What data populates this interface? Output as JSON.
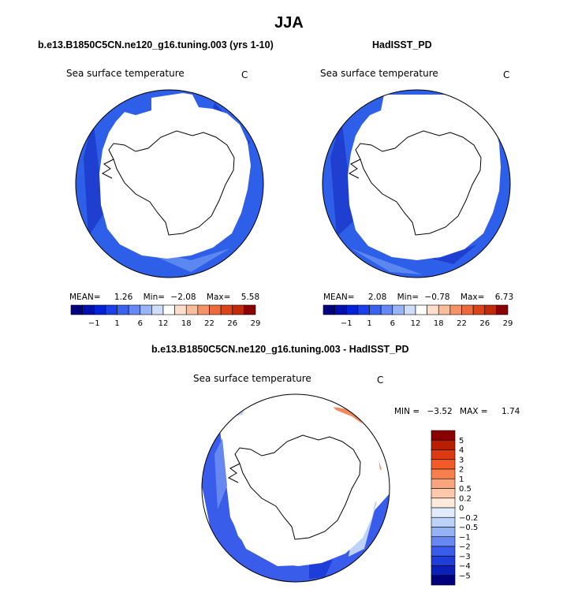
{
  "season": "JJA",
  "colors": {
    "land": "#ffffff",
    "outline": "#000000",
    "cold_band": "#2e5fe8",
    "cold_band_dark": "#1f3fd0",
    "warm_patch": "#f08a5c"
  },
  "chart_data": [
    {
      "type": "heatmap",
      "name": "model",
      "title": "b.e13.B1850C5CN.ne120_g16.tuning.003 (yrs 1-10)",
      "variable": "Sea surface temperature",
      "units": "C",
      "projection": "south-polar-stereographic",
      "stats": {
        "mean_label": "MEAN=",
        "mean": "1.26",
        "min_label": "Min=",
        "min": "−2.08",
        "max_label": "Max=",
        "max": "5.58"
      },
      "colorbar": {
        "orientation": "horizontal",
        "levels": [
          -2,
          -1,
          0,
          1,
          3,
          6,
          9,
          12,
          15,
          18,
          20,
          22,
          24,
          26,
          28,
          29
        ],
        "tick_labels": [
          "−1",
          "1",
          "6",
          "12",
          "18",
          "22",
          "26",
          "29"
        ],
        "colors": [
          "#00007f",
          "#0010b0",
          "#0022d8",
          "#1a40ea",
          "#3a62f0",
          "#6688f2",
          "#99b4f6",
          "#cdddfa",
          "#ffffff",
          "#fde0cc",
          "#fbbd9a",
          "#f69266",
          "#ee6a3c",
          "#dc4418",
          "#c02a08",
          "#8a0000"
        ]
      }
    },
    {
      "type": "heatmap",
      "name": "obs",
      "title": "HadISST_PD",
      "variable": "Sea surface temperature",
      "units": "C",
      "projection": "south-polar-stereographic",
      "stats": {
        "mean_label": "MEAN=",
        "mean": "2.08",
        "min_label": "Min=",
        "min": "−0.78",
        "max_label": "Max=",
        "max": "6.73"
      },
      "colorbar": {
        "orientation": "horizontal",
        "levels": [
          -2,
          -1,
          0,
          1,
          3,
          6,
          9,
          12,
          15,
          18,
          20,
          22,
          24,
          26,
          28,
          29
        ],
        "tick_labels": [
          "−1",
          "1",
          "6",
          "12",
          "18",
          "22",
          "26",
          "29"
        ],
        "colors": [
          "#00007f",
          "#0010b0",
          "#0022d8",
          "#1a40ea",
          "#3a62f0",
          "#6688f2",
          "#99b4f6",
          "#cdddfa",
          "#ffffff",
          "#fde0cc",
          "#fbbd9a",
          "#f69266",
          "#ee6a3c",
          "#dc4418",
          "#c02a08",
          "#8a0000"
        ]
      }
    },
    {
      "type": "heatmap",
      "name": "diff",
      "title": "b.e13.B1850C5CN.ne120_g16.tuning.003 - HadISST_PD",
      "variable": "Sea surface temperature",
      "units": "C",
      "projection": "south-polar-stereographic",
      "stats": {
        "min_label": "MIN =",
        "min": "−3.52",
        "max_label": "MAX =",
        "max": "1.74"
      },
      "colorbar": {
        "orientation": "vertical",
        "tick_labels": [
          "5",
          "4",
          "3",
          "2",
          "1",
          "0.5",
          "0.2",
          "0",
          "−0.2",
          "−0.5",
          "−1",
          "−2",
          "−3",
          "−4",
          "−5"
        ],
        "colors": [
          "#8a0000",
          "#b81e00",
          "#dc3a10",
          "#f25a28",
          "#f87e4e",
          "#fba57e",
          "#fdc9aa",
          "#feeadc",
          "#e0ecfc",
          "#bcd2f8",
          "#94b2f4",
          "#6688f0",
          "#3a5cea",
          "#1d3ed8",
          "#0a20b8",
          "#00007f"
        ]
      }
    }
  ]
}
